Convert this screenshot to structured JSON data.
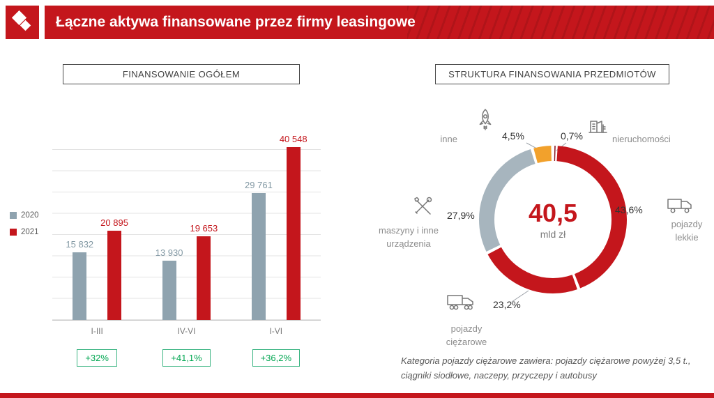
{
  "header": {
    "title": "Łączne aktywa finansowane przez firmy leasingowe"
  },
  "colors": {
    "brand_red": "#C4161C",
    "bar_gray": "#8FA3AF",
    "badge_green": "#00A651",
    "slice_orange": "#F2A12C",
    "slice_dark_red": "#8C1D26"
  },
  "footnote": {
    "lines": [
      "Kategoria pojazdy ciężarowe zawiera: pojazdy ciężarowe powyżej 3,5 t.,",
      "ciągniki siodłowe, naczepy, przyczepy i autobusy"
    ]
  },
  "chart_data": [
    {
      "type": "bar",
      "title": "FINANSOWANIE OGÓŁEM",
      "categories": [
        "I-III",
        "IV-VI",
        "I-VI"
      ],
      "series": [
        {
          "name": "2020",
          "color": "#8FA3AF",
          "label_color": "#8399A4",
          "values": [
            15832,
            13930,
            29761
          ],
          "labels": [
            "15 832",
            "13 930",
            "29 761"
          ]
        },
        {
          "name": "2021",
          "color": "#C4161C",
          "label_color": "#C4161C",
          "values": [
            20895,
            19653,
            40548
          ],
          "labels": [
            "20 895",
            "19 653",
            "40 548"
          ]
        }
      ],
      "growth_badges": [
        "+32%",
        "+41,1%",
        "+36,2%"
      ],
      "ylim": [
        0,
        45000
      ],
      "grid": true,
      "legend_position": "left"
    },
    {
      "type": "donut",
      "title": "STRUKTURA FINANSOWANIA PRZEDMIOTÓW",
      "center_value": "40,5",
      "center_unit": "mld zł",
      "slices": [
        {
          "label": "nieruchomości",
          "value": 0.7,
          "display": "0,7%",
          "color": "#8C1D26",
          "icon": "building-icon"
        },
        {
          "label": "pojazdy lekkie",
          "value": 43.6,
          "display": "43,6%",
          "color": "#C4161C",
          "icon": "van-icon"
        },
        {
          "label": "pojazdy ciężarowe",
          "value": 23.2,
          "display": "23,2%",
          "color": "#C4161C",
          "icon": "truck-icon"
        },
        {
          "label": "maszyny i inne urządzenia",
          "value": 27.9,
          "display": "27,9%",
          "color": "#A7B5BE",
          "icon": "tools-icon"
        },
        {
          "label": "inne",
          "value": 4.5,
          "display": "4,5%",
          "color": "#F2A12C",
          "icon": "rocket-icon"
        }
      ]
    }
  ]
}
